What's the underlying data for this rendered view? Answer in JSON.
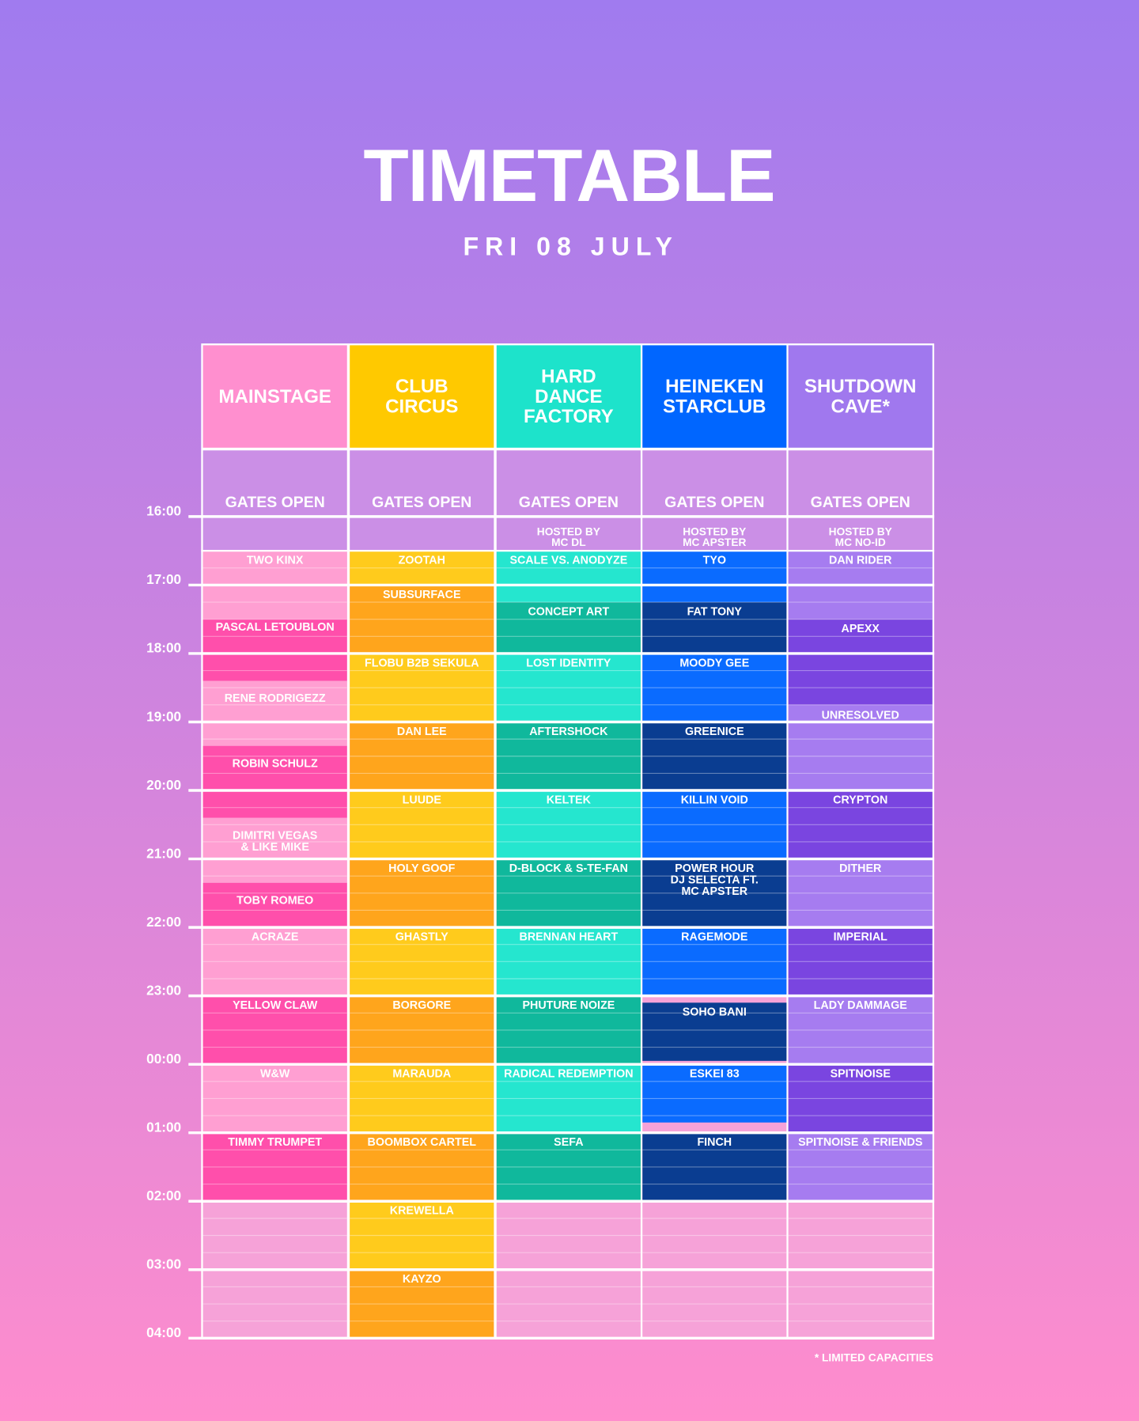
{
  "title": "TIMETABLE",
  "date": "FRI 08 JULY",
  "times": [
    "16:00",
    "17:00",
    "18:00",
    "19:00",
    "20:00",
    "21:00",
    "22:00",
    "23:00",
    "00:00",
    "01:00",
    "02:00",
    "03:00",
    "04:00"
  ],
  "stages": [
    {
      "name": [
        "MAINSTAGE"
      ],
      "gates": "GATES OPEN",
      "sets": [
        "TWO KINX",
        "PASCAL LETOUBLON",
        "RENE RODRIGEZZ",
        "ROBIN SCHULZ",
        [
          "DIMITRI VEGAS",
          "& LIKE MIKE"
        ],
        "TOBY ROMEO",
        "ACRAZE",
        "YELLOW CLAW",
        "W&W",
        "TIMMY TRUMPET"
      ]
    },
    {
      "name": [
        "CLUB",
        "CIRCUS"
      ],
      "gates": "GATES OPEN",
      "sets": [
        "ZOOTAH",
        "SUBSURFACE",
        "FLOBU B2B SEKULA",
        "DAN LEE",
        "LUUDE",
        "HOLY GOOF",
        "GHASTLY",
        "BORGORE",
        "MARAUDA",
        "BOOMBOX CARTEL",
        "KREWELLA",
        "KAYZO"
      ]
    },
    {
      "name": [
        "HARD",
        "DANCE",
        "FACTORY"
      ],
      "gates": "GATES OPEN",
      "host": [
        "HOSTED BY",
        "MC DL"
      ],
      "sets": [
        "SCALE VS. ANODYZE",
        "CONCEPT ART",
        "LOST IDENTITY",
        "AFTERSHOCK",
        "KELTEK",
        "D-BLOCK & S-TE-FAN",
        "BRENNAN HEART",
        "PHUTURE NOIZE",
        "RADICAL REDEMPTION",
        "SEFA"
      ]
    },
    {
      "name": [
        "HEINEKEN",
        "STARCLUB"
      ],
      "gates": "GATES OPEN",
      "host": [
        "HOSTED BY",
        "MC APSTER"
      ],
      "sets": [
        "TYO",
        "FAT TONY",
        "MOODY GEE",
        "GREENICE",
        "KILLIN VOID",
        [
          "POWER HOUR",
          "DJ SELECTA FT.",
          "MC APSTER"
        ],
        "RAGEMODE",
        "SOHO BANI",
        "ESKEI 83",
        "FINCH"
      ]
    },
    {
      "name": [
        "SHUTDOWN",
        "CAVE*"
      ],
      "gates": "GATES OPEN",
      "host": [
        "HOSTED BY",
        "MC NO-ID"
      ],
      "sets": [
        "DAN RIDER",
        "APEXX",
        "UNRESOLVED",
        "CRYPTON",
        "DITHER",
        "IMPERIAL",
        "LADY DAMMAGE",
        "SPITNOISE",
        "SPITNOISE & FRIENDS"
      ]
    }
  ],
  "footnote": "* LIMITED CAPACITIES"
}
